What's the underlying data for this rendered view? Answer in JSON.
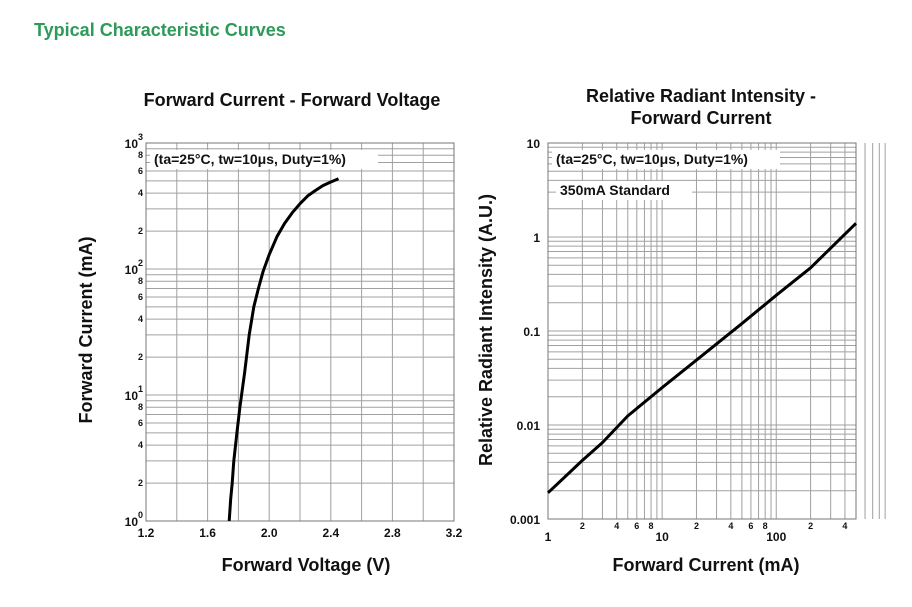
{
  "page": {
    "title": "Typical Characteristic Curves"
  },
  "chart_data": [
    {
      "type": "line",
      "title": "Forward Current - Forward Voltage",
      "xlabel": "Forward Voltage (V)",
      "ylabel": "Forward Current (mA)",
      "xlim": [
        1.2,
        3.2
      ],
      "ylim": [
        1,
        1000
      ],
      "yscale": "log",
      "grid": true,
      "annotations": [
        "(ta=25°C, tw=10μs, Duty=1%)"
      ],
      "x_ticks": [
        "1.2",
        "1.6",
        "2.0",
        "2.4",
        "2.8",
        "3.2"
      ],
      "y_major_ticks": [
        {
          "base": "10",
          "exp": "0"
        },
        {
          "base": "10",
          "exp": "1"
        },
        {
          "base": "10",
          "exp": "2"
        },
        {
          "base": "10",
          "exp": "3"
        }
      ],
      "y_minor_labels": [
        "2",
        "4",
        "6",
        "8"
      ],
      "series": [
        {
          "x": [
            1.74,
            1.75,
            1.76,
            1.77,
            1.79,
            1.81,
            1.84,
            1.87,
            1.9,
            1.93,
            1.96,
            2.0,
            2.05,
            2.1,
            2.15,
            2.2,
            2.25,
            2.3,
            2.35,
            2.4,
            2.45
          ],
          "y": [
            1,
            1.5,
            2,
            3,
            5,
            8,
            15,
            30,
            50,
            70,
            95,
            130,
            180,
            230,
            280,
            330,
            380,
            420,
            460,
            490,
            520
          ]
        }
      ]
    },
    {
      "type": "line",
      "title": "Relative Radiant Intensity - Forward Current",
      "xlabel": "Forward Current (mA)",
      "ylabel": "Relative Radiant Intensity (A.U.)",
      "xlim": [
        1,
        500
      ],
      "ylim": [
        0.001,
        10
      ],
      "xscale": "log",
      "yscale": "log",
      "grid": true,
      "annotations": [
        "(ta=25°C, tw=10μs, Duty=1%)",
        "350mA Standard"
      ],
      "x_major_labels": [
        "1",
        "10",
        "100"
      ],
      "x_minor_labels": [
        "2",
        "4",
        "6",
        "8",
        "2",
        "4",
        "6",
        "8",
        "2",
        "4"
      ],
      "y_ticks": [
        "0.001",
        "0.01",
        "0.1",
        "1",
        "10"
      ],
      "series": [
        {
          "x": [
            1,
            2,
            3,
            5,
            10,
            20,
            50,
            100,
            200,
            500
          ],
          "y": [
            0.0019,
            0.0042,
            0.0065,
            0.0125,
            0.025,
            0.049,
            0.12,
            0.24,
            0.47,
            1.4
          ]
        }
      ]
    }
  ]
}
